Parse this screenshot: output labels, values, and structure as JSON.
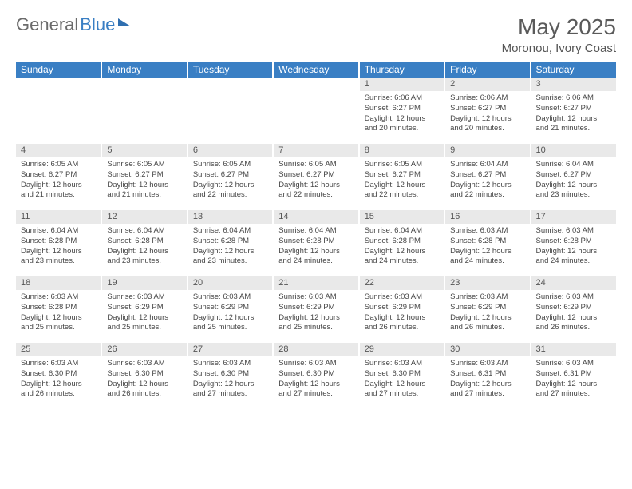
{
  "logo": {
    "part1": "General",
    "part2": "Blue"
  },
  "title": "May 2025",
  "location": "Moronou, Ivory Coast",
  "colors": {
    "header_bg": "#3a7fc4",
    "header_text": "#ffffff",
    "daynum_bg": "#e9e9e9",
    "daynum_text": "#555555",
    "body_text": "#474747",
    "page_bg": "#ffffff",
    "logo_general": "#6b6b6b",
    "logo_blue": "#3a7fc4",
    "title_text": "#5a5a5a"
  },
  "weekdays": [
    "Sunday",
    "Monday",
    "Tuesday",
    "Wednesday",
    "Thursday",
    "Friday",
    "Saturday"
  ],
  "weeks": [
    [
      {
        "empty": true
      },
      {
        "empty": true
      },
      {
        "empty": true
      },
      {
        "empty": true
      },
      {
        "day": "1",
        "sunrise": "Sunrise: 6:06 AM",
        "sunset": "Sunset: 6:27 PM",
        "daylight": "Daylight: 12 hours and 20 minutes."
      },
      {
        "day": "2",
        "sunrise": "Sunrise: 6:06 AM",
        "sunset": "Sunset: 6:27 PM",
        "daylight": "Daylight: 12 hours and 20 minutes."
      },
      {
        "day": "3",
        "sunrise": "Sunrise: 6:06 AM",
        "sunset": "Sunset: 6:27 PM",
        "daylight": "Daylight: 12 hours and 21 minutes."
      }
    ],
    [
      {
        "day": "4",
        "sunrise": "Sunrise: 6:05 AM",
        "sunset": "Sunset: 6:27 PM",
        "daylight": "Daylight: 12 hours and 21 minutes."
      },
      {
        "day": "5",
        "sunrise": "Sunrise: 6:05 AM",
        "sunset": "Sunset: 6:27 PM",
        "daylight": "Daylight: 12 hours and 21 minutes."
      },
      {
        "day": "6",
        "sunrise": "Sunrise: 6:05 AM",
        "sunset": "Sunset: 6:27 PM",
        "daylight": "Daylight: 12 hours and 22 minutes."
      },
      {
        "day": "7",
        "sunrise": "Sunrise: 6:05 AM",
        "sunset": "Sunset: 6:27 PM",
        "daylight": "Daylight: 12 hours and 22 minutes."
      },
      {
        "day": "8",
        "sunrise": "Sunrise: 6:05 AM",
        "sunset": "Sunset: 6:27 PM",
        "daylight": "Daylight: 12 hours and 22 minutes."
      },
      {
        "day": "9",
        "sunrise": "Sunrise: 6:04 AM",
        "sunset": "Sunset: 6:27 PM",
        "daylight": "Daylight: 12 hours and 22 minutes."
      },
      {
        "day": "10",
        "sunrise": "Sunrise: 6:04 AM",
        "sunset": "Sunset: 6:27 PM",
        "daylight": "Daylight: 12 hours and 23 minutes."
      }
    ],
    [
      {
        "day": "11",
        "sunrise": "Sunrise: 6:04 AM",
        "sunset": "Sunset: 6:28 PM",
        "daylight": "Daylight: 12 hours and 23 minutes."
      },
      {
        "day": "12",
        "sunrise": "Sunrise: 6:04 AM",
        "sunset": "Sunset: 6:28 PM",
        "daylight": "Daylight: 12 hours and 23 minutes."
      },
      {
        "day": "13",
        "sunrise": "Sunrise: 6:04 AM",
        "sunset": "Sunset: 6:28 PM",
        "daylight": "Daylight: 12 hours and 23 minutes."
      },
      {
        "day": "14",
        "sunrise": "Sunrise: 6:04 AM",
        "sunset": "Sunset: 6:28 PM",
        "daylight": "Daylight: 12 hours and 24 minutes."
      },
      {
        "day": "15",
        "sunrise": "Sunrise: 6:04 AM",
        "sunset": "Sunset: 6:28 PM",
        "daylight": "Daylight: 12 hours and 24 minutes."
      },
      {
        "day": "16",
        "sunrise": "Sunrise: 6:03 AM",
        "sunset": "Sunset: 6:28 PM",
        "daylight": "Daylight: 12 hours and 24 minutes."
      },
      {
        "day": "17",
        "sunrise": "Sunrise: 6:03 AM",
        "sunset": "Sunset: 6:28 PM",
        "daylight": "Daylight: 12 hours and 24 minutes."
      }
    ],
    [
      {
        "day": "18",
        "sunrise": "Sunrise: 6:03 AM",
        "sunset": "Sunset: 6:28 PM",
        "daylight": "Daylight: 12 hours and 25 minutes."
      },
      {
        "day": "19",
        "sunrise": "Sunrise: 6:03 AM",
        "sunset": "Sunset: 6:29 PM",
        "daylight": "Daylight: 12 hours and 25 minutes."
      },
      {
        "day": "20",
        "sunrise": "Sunrise: 6:03 AM",
        "sunset": "Sunset: 6:29 PM",
        "daylight": "Daylight: 12 hours and 25 minutes."
      },
      {
        "day": "21",
        "sunrise": "Sunrise: 6:03 AM",
        "sunset": "Sunset: 6:29 PM",
        "daylight": "Daylight: 12 hours and 25 minutes."
      },
      {
        "day": "22",
        "sunrise": "Sunrise: 6:03 AM",
        "sunset": "Sunset: 6:29 PM",
        "daylight": "Daylight: 12 hours and 26 minutes."
      },
      {
        "day": "23",
        "sunrise": "Sunrise: 6:03 AM",
        "sunset": "Sunset: 6:29 PM",
        "daylight": "Daylight: 12 hours and 26 minutes."
      },
      {
        "day": "24",
        "sunrise": "Sunrise: 6:03 AM",
        "sunset": "Sunset: 6:29 PM",
        "daylight": "Daylight: 12 hours and 26 minutes."
      }
    ],
    [
      {
        "day": "25",
        "sunrise": "Sunrise: 6:03 AM",
        "sunset": "Sunset: 6:30 PM",
        "daylight": "Daylight: 12 hours and 26 minutes."
      },
      {
        "day": "26",
        "sunrise": "Sunrise: 6:03 AM",
        "sunset": "Sunset: 6:30 PM",
        "daylight": "Daylight: 12 hours and 26 minutes."
      },
      {
        "day": "27",
        "sunrise": "Sunrise: 6:03 AM",
        "sunset": "Sunset: 6:30 PM",
        "daylight": "Daylight: 12 hours and 27 minutes."
      },
      {
        "day": "28",
        "sunrise": "Sunrise: 6:03 AM",
        "sunset": "Sunset: 6:30 PM",
        "daylight": "Daylight: 12 hours and 27 minutes."
      },
      {
        "day": "29",
        "sunrise": "Sunrise: 6:03 AM",
        "sunset": "Sunset: 6:30 PM",
        "daylight": "Daylight: 12 hours and 27 minutes."
      },
      {
        "day": "30",
        "sunrise": "Sunrise: 6:03 AM",
        "sunset": "Sunset: 6:31 PM",
        "daylight": "Daylight: 12 hours and 27 minutes."
      },
      {
        "day": "31",
        "sunrise": "Sunrise: 6:03 AM",
        "sunset": "Sunset: 6:31 PM",
        "daylight": "Daylight: 12 hours and 27 minutes."
      }
    ]
  ]
}
